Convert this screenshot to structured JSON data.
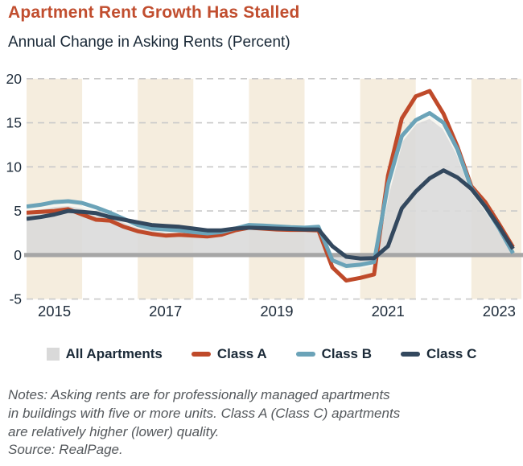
{
  "header": {
    "title": "Apartment Rent Growth Has Stalled",
    "subtitle": "Annual Change in Asking Rents (Percent)"
  },
  "chart_data": {
    "type": "line",
    "title": "Apartment Rent Growth Has Stalled",
    "subtitle": "Annual Change in Asking Rents (Percent)",
    "xlabel": "",
    "ylabel": "Annual change in asking rents (percent)",
    "ylim": [
      -5,
      20
    ],
    "xlim": [
      2014.5,
      2023.4
    ],
    "yticks": [
      20,
      15,
      10,
      5,
      0,
      -5
    ],
    "xticks": [
      2015,
      2017,
      2019,
      2021,
      2023
    ],
    "grid": "horizontal-dashed",
    "gridline_color": "#c9c9c9",
    "zero_line_color": "#a6a6a6",
    "band_years": [
      2015,
      2017,
      2019,
      2021,
      2023
    ],
    "band_color": "#f5edde",
    "legend_position": "bottom",
    "x": [
      2014.5,
      2014.75,
      2015,
      2015.25,
      2015.5,
      2015.75,
      2016,
      2016.25,
      2016.5,
      2016.75,
      2017,
      2017.25,
      2017.5,
      2017.75,
      2018,
      2018.25,
      2018.5,
      2018.75,
      2019,
      2019.25,
      2019.5,
      2019.75,
      2020,
      2020.25,
      2020.5,
      2020.75,
      2021,
      2021.25,
      2021.5,
      2021.75,
      2022,
      2022.25,
      2022.5,
      2022.75,
      2023,
      2023.25
    ],
    "series": [
      {
        "name": "All Apartments",
        "style": "area",
        "color": "#d9d9d9",
        "edge_color": "#f7f6f0",
        "values": [
          5.1,
          5.3,
          5.6,
          5.7,
          5.4,
          4.9,
          4.4,
          3.8,
          3.2,
          2.9,
          2.7,
          2.6,
          2.5,
          2.4,
          2.5,
          2.9,
          3.2,
          3.15,
          3.05,
          3.0,
          3.0,
          3.0,
          -1.0,
          -1.55,
          -1.4,
          -1.1,
          7.0,
          13.0,
          15.0,
          15.6,
          14.4,
          11.5,
          7.3,
          5.2,
          2.8,
          0.35
        ]
      },
      {
        "name": "Class A",
        "style": "line",
        "color": "#bf4a2a",
        "values": [
          4.8,
          4.9,
          5.0,
          5.2,
          4.6,
          4.0,
          3.9,
          3.2,
          2.7,
          2.4,
          2.2,
          2.3,
          2.2,
          2.1,
          2.3,
          2.8,
          3.1,
          3.0,
          2.9,
          2.85,
          2.85,
          2.8,
          -1.4,
          -2.9,
          -2.6,
          -2.2,
          9.0,
          15.5,
          18.0,
          18.6,
          16.0,
          12.3,
          7.8,
          6.0,
          3.5,
          0.9
        ]
      },
      {
        "name": "Class B",
        "style": "line",
        "color": "#6ba3b8",
        "values": [
          5.5,
          5.7,
          6.0,
          6.1,
          5.9,
          5.4,
          4.8,
          4.1,
          3.4,
          3.0,
          2.9,
          2.8,
          2.6,
          2.45,
          2.6,
          3.0,
          3.4,
          3.35,
          3.25,
          3.15,
          3.1,
          3.2,
          -0.6,
          -1.25,
          -1.1,
          -0.8,
          8.0,
          13.5,
          15.3,
          16.1,
          15.0,
          12.0,
          7.6,
          5.5,
          3.0,
          0.2
        ]
      },
      {
        "name": "Class C",
        "style": "line",
        "color": "#33485e",
        "values": [
          4.1,
          4.3,
          4.6,
          5.0,
          4.9,
          4.75,
          4.3,
          4.0,
          3.7,
          3.4,
          3.3,
          3.2,
          3.0,
          2.8,
          2.8,
          3.0,
          3.1,
          3.05,
          3.0,
          2.95,
          2.9,
          2.9,
          1.0,
          -0.2,
          -0.4,
          -0.35,
          1.0,
          5.3,
          7.2,
          8.7,
          9.6,
          8.8,
          7.5,
          5.5,
          3.2,
          0.7
        ]
      }
    ]
  },
  "legend": {
    "items": [
      {
        "label": "All Apartments",
        "color": "#d9d9d9",
        "shape": "square"
      },
      {
        "label": "Class A",
        "color": "#bf4a2a",
        "shape": "dash"
      },
      {
        "label": "Class B",
        "color": "#6ba3b8",
        "shape": "dash"
      },
      {
        "label": "Class C",
        "color": "#33485e",
        "shape": "dash"
      }
    ]
  },
  "notes": {
    "lines": [
      "Notes: Asking rents are for professionally managed apartments",
      "in buildings with five or more units. Class A (Class C) apartments",
      "are relatively higher (lower) quality."
    ],
    "source": "Source: RealPage."
  }
}
